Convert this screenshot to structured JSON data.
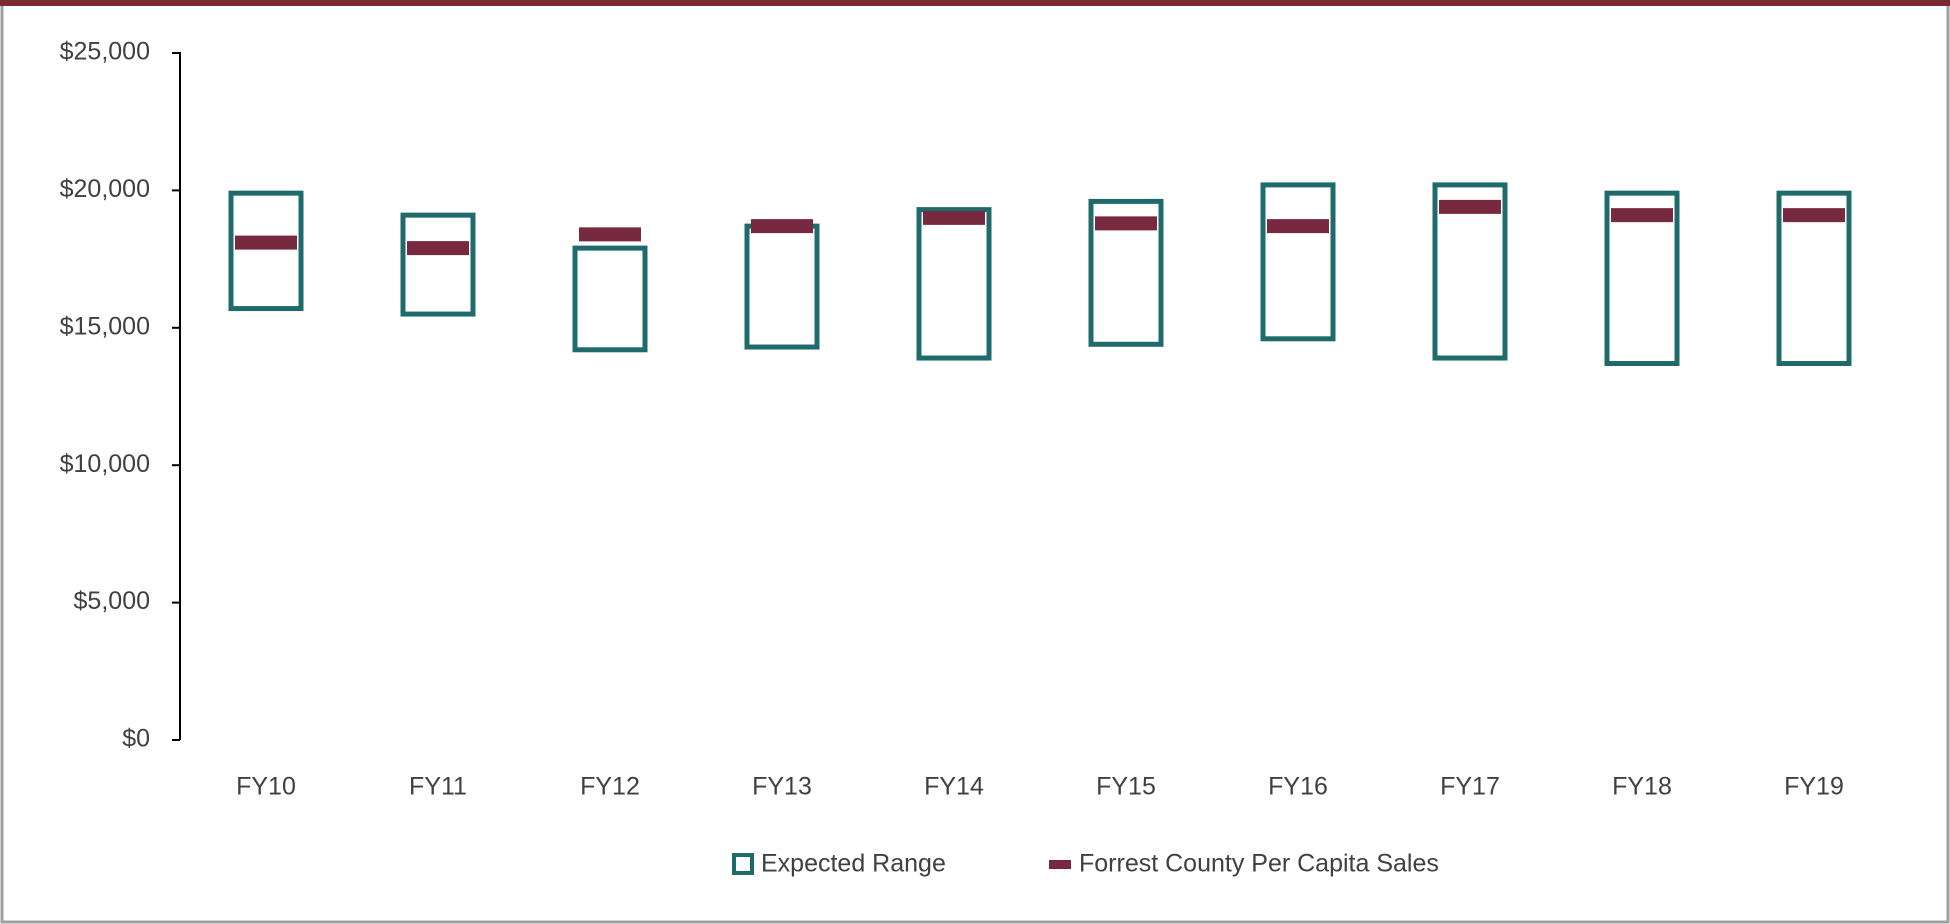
{
  "chart_data": {
    "type": "range",
    "categories": [
      "FY10",
      "FY11",
      "FY12",
      "FY13",
      "FY14",
      "FY15",
      "FY16",
      "FY17",
      "FY18",
      "FY19"
    ],
    "series": [
      {
        "name": "Expected Range",
        "color": "#1f6b6b",
        "low": [
          15700,
          15500,
          14200,
          14300,
          13900,
          14400,
          14600,
          13900,
          13700,
          13700
        ],
        "high": [
          19900,
          19100,
          17900,
          18700,
          19300,
          19600,
          20200,
          20200,
          19900,
          19900
        ]
      },
      {
        "name": "Forrest County Per Capita Sales",
        "color": "#772a3f",
        "values": [
          18100,
          17900,
          18400,
          18700,
          19000,
          18800,
          18700,
          19400,
          19100,
          19100
        ]
      }
    ],
    "ylim": [
      0,
      25000
    ],
    "yticks": [
      {
        "value": 0,
        "label": "$0"
      },
      {
        "value": 5000,
        "label": "$5,000"
      },
      {
        "value": 10000,
        "label": "$10,000"
      },
      {
        "value": 15000,
        "label": "$15,000"
      },
      {
        "value": 20000,
        "label": "$20,000"
      },
      {
        "value": 25000,
        "label": "$25,000"
      }
    ],
    "grid": false
  }
}
